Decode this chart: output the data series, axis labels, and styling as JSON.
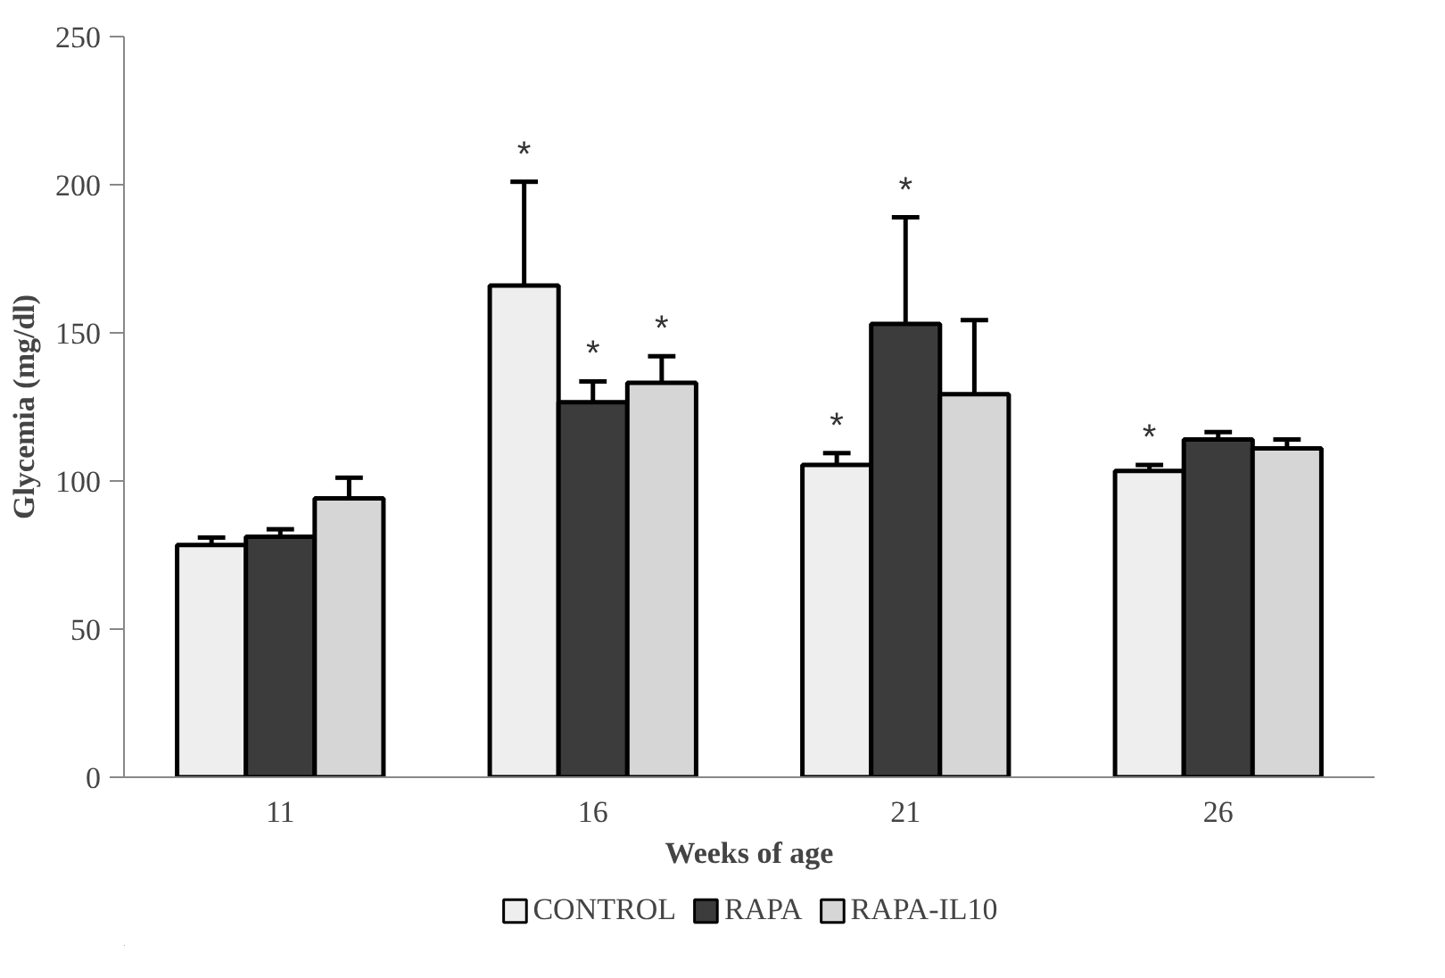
{
  "chart_data": {
    "type": "bar",
    "xlabel": "Weeks of age",
    "ylabel": "Glycemia (mg/dl)",
    "categories": [
      "11",
      "16",
      "21",
      "26"
    ],
    "series": [
      {
        "name": "CONTROL",
        "color": "#eeeeee",
        "values": [
          78.4,
          166,
          105.4,
          103.4
        ],
        "errors": [
          2.5,
          35,
          4,
          2
        ],
        "value_labels": [
          null,
          "*",
          "*",
          "*"
        ]
      },
      {
        "name": "RAPA",
        "color": "#3c3c3c",
        "values": [
          81.2,
          126.6,
          153,
          114
        ],
        "errors": [
          2.5,
          7,
          36,
          2.5
        ],
        "value_labels": [
          null,
          "*",
          "*",
          null
        ]
      },
      {
        "name": "RAPA-IL10",
        "color": "#d6d6d6",
        "values": [
          94.1,
          133.1,
          129.3,
          111
        ],
        "errors": [
          7,
          9,
          25,
          3
        ],
        "value_labels": [
          null,
          "*",
          null,
          null
        ]
      }
    ],
    "ylim": [
      0,
      250
    ],
    "yticks": [
      0,
      50,
      100,
      150,
      200,
      250
    ],
    "grid": false,
    "legend": "bottom"
  }
}
